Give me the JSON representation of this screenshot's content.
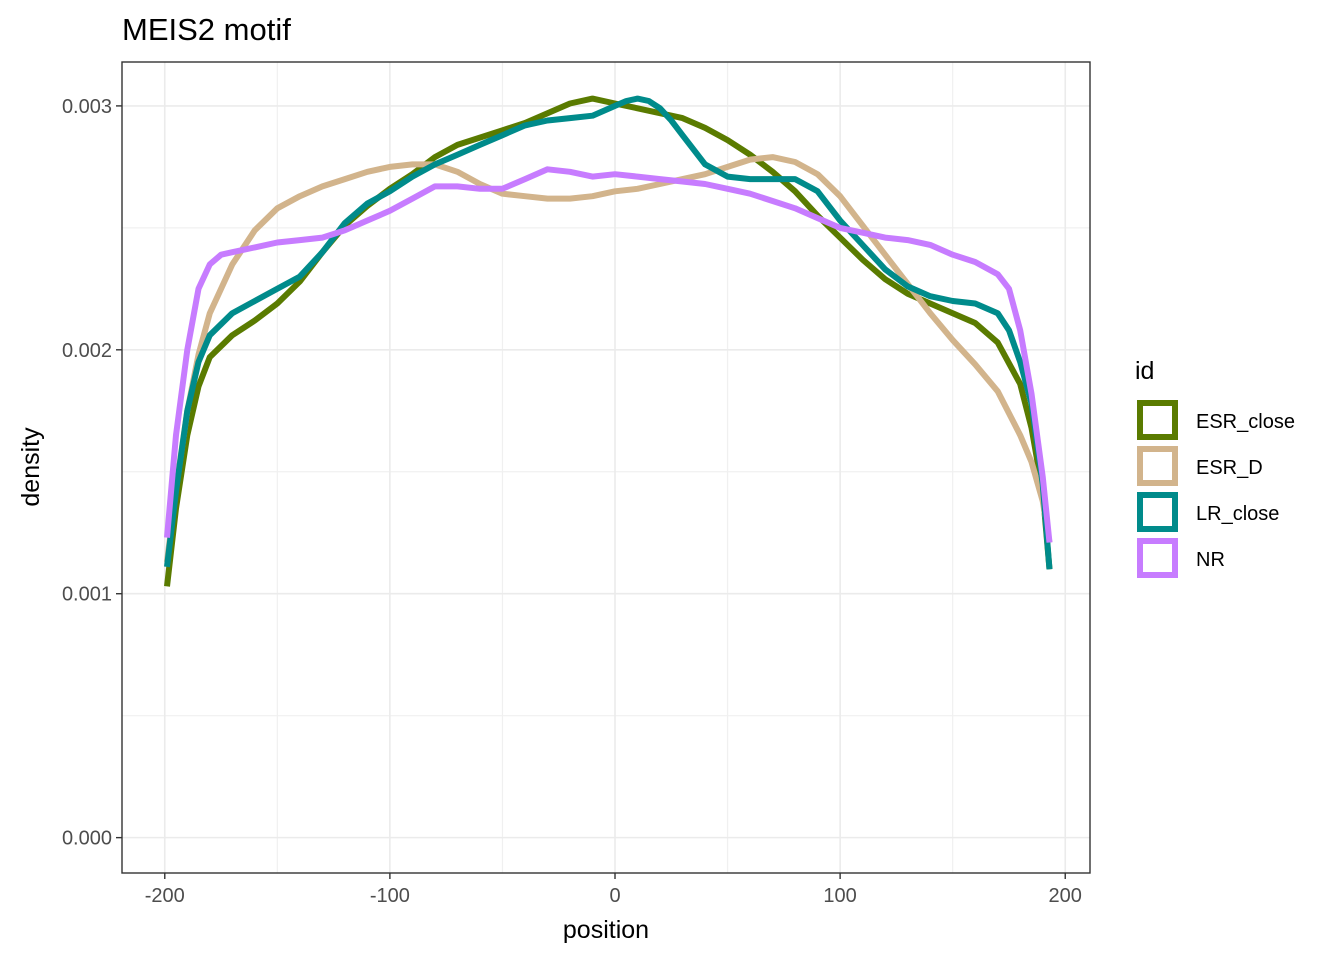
{
  "chart_data": {
    "type": "line",
    "title": "MEIS2 motif",
    "xlabel": "position",
    "ylabel": "density",
    "xlim": [
      -219,
      211
    ],
    "ylim": [
      -0.000145,
      0.00318
    ],
    "x_ticks": [
      -200,
      -100,
      0,
      100,
      200
    ],
    "x_tick_labels": [
      "-200",
      "-100",
      "0",
      "100",
      "200"
    ],
    "y_ticks": [
      0.0,
      0.001,
      0.002,
      0.003
    ],
    "y_tick_labels": [
      "0.000",
      "0.001",
      "0.002",
      "0.003"
    ],
    "grid": true,
    "legend": {
      "title": "id",
      "position": "right"
    },
    "series": [
      {
        "name": "ESR_close",
        "color": "#5a7b00",
        "x": [
          -199,
          -195,
          -190,
          -185,
          -180,
          -170,
          -160,
          -150,
          -140,
          -130,
          -120,
          -110,
          -100,
          -90,
          -80,
          -70,
          -60,
          -50,
          -40,
          -30,
          -20,
          -10,
          0,
          10,
          20,
          30,
          40,
          50,
          60,
          70,
          80,
          90,
          100,
          110,
          120,
          130,
          140,
          150,
          160,
          170,
          180,
          185,
          190,
          193
        ],
        "y": [
          0.00103,
          0.00135,
          0.00165,
          0.00185,
          0.00197,
          0.00206,
          0.00212,
          0.00219,
          0.00228,
          0.0024,
          0.00251,
          0.00259,
          0.00266,
          0.00272,
          0.00279,
          0.00284,
          0.00287,
          0.0029,
          0.00293,
          0.00297,
          0.00301,
          0.00303,
          0.00301,
          0.00299,
          0.00297,
          0.00295,
          0.00291,
          0.00286,
          0.0028,
          0.00273,
          0.00265,
          0.00255,
          0.00246,
          0.00237,
          0.00229,
          0.00223,
          0.00219,
          0.00215,
          0.00211,
          0.00203,
          0.00186,
          0.00168,
          0.00142,
          0.0011
        ]
      },
      {
        "name": "ESR_D",
        "color": "#d2b48c",
        "x": [
          -199,
          -195,
          -190,
          -185,
          -180,
          -170,
          -160,
          -150,
          -140,
          -130,
          -120,
          -110,
          -100,
          -90,
          -80,
          -70,
          -60,
          -50,
          -40,
          -30,
          -20,
          -10,
          0,
          10,
          20,
          30,
          40,
          50,
          60,
          70,
          80,
          90,
          100,
          110,
          120,
          130,
          140,
          150,
          160,
          170,
          180,
          185,
          190,
          193
        ],
        "y": [
          0.00113,
          0.00143,
          0.00175,
          0.00198,
          0.00215,
          0.00235,
          0.00249,
          0.00258,
          0.00263,
          0.00267,
          0.0027,
          0.00273,
          0.00275,
          0.00276,
          0.00276,
          0.00273,
          0.00268,
          0.00264,
          0.00263,
          0.00262,
          0.00262,
          0.00263,
          0.00265,
          0.00266,
          0.00268,
          0.0027,
          0.00272,
          0.00275,
          0.00278,
          0.00279,
          0.00277,
          0.00272,
          0.00263,
          0.00251,
          0.00239,
          0.00227,
          0.00215,
          0.00204,
          0.00194,
          0.00183,
          0.00165,
          0.00154,
          0.00138,
          0.00121
        ]
      },
      {
        "name": "LR_close",
        "color": "#008b8b",
        "x": [
          -199,
          -195,
          -190,
          -185,
          -180,
          -170,
          -160,
          -150,
          -140,
          -130,
          -120,
          -110,
          -100,
          -90,
          -80,
          -70,
          -60,
          -50,
          -40,
          -30,
          -20,
          -10,
          0,
          5,
          10,
          15,
          20,
          25,
          30,
          40,
          50,
          60,
          70,
          80,
          90,
          100,
          110,
          120,
          130,
          140,
          150,
          160,
          170,
          175,
          180,
          185,
          190,
          193
        ],
        "y": [
          0.00111,
          0.00142,
          0.00175,
          0.00195,
          0.00206,
          0.00215,
          0.0022,
          0.00225,
          0.0023,
          0.0024,
          0.00252,
          0.0026,
          0.00265,
          0.00271,
          0.00276,
          0.0028,
          0.00284,
          0.00288,
          0.00292,
          0.00294,
          0.00295,
          0.00296,
          0.003,
          0.00302,
          0.00303,
          0.00302,
          0.00299,
          0.00294,
          0.00288,
          0.00276,
          0.00271,
          0.0027,
          0.0027,
          0.0027,
          0.00265,
          0.00253,
          0.00243,
          0.00233,
          0.00226,
          0.00222,
          0.0022,
          0.00219,
          0.00215,
          0.00208,
          0.00195,
          0.00178,
          0.00145,
          0.0011
        ]
      },
      {
        "name": "NR",
        "color": "#c77cff",
        "x": [
          -199,
          -195,
          -190,
          -185,
          -180,
          -175,
          -170,
          -160,
          -150,
          -140,
          -130,
          -120,
          -110,
          -100,
          -90,
          -80,
          -70,
          -60,
          -50,
          -40,
          -30,
          -20,
          -10,
          0,
          10,
          20,
          30,
          40,
          50,
          60,
          70,
          80,
          90,
          100,
          110,
          120,
          130,
          140,
          150,
          160,
          170,
          175,
          180,
          185,
          190,
          193
        ],
        "y": [
          0.00123,
          0.00165,
          0.002,
          0.00225,
          0.00235,
          0.00239,
          0.0024,
          0.00242,
          0.00244,
          0.00245,
          0.00246,
          0.00249,
          0.00253,
          0.00257,
          0.00262,
          0.00267,
          0.00267,
          0.00266,
          0.00266,
          0.0027,
          0.00274,
          0.00273,
          0.00271,
          0.00272,
          0.00271,
          0.0027,
          0.00269,
          0.00268,
          0.00266,
          0.00264,
          0.00261,
          0.00258,
          0.00254,
          0.0025,
          0.00248,
          0.00246,
          0.00245,
          0.00243,
          0.00239,
          0.00236,
          0.00231,
          0.00225,
          0.00208,
          0.00182,
          0.00148,
          0.00121
        ]
      }
    ]
  }
}
